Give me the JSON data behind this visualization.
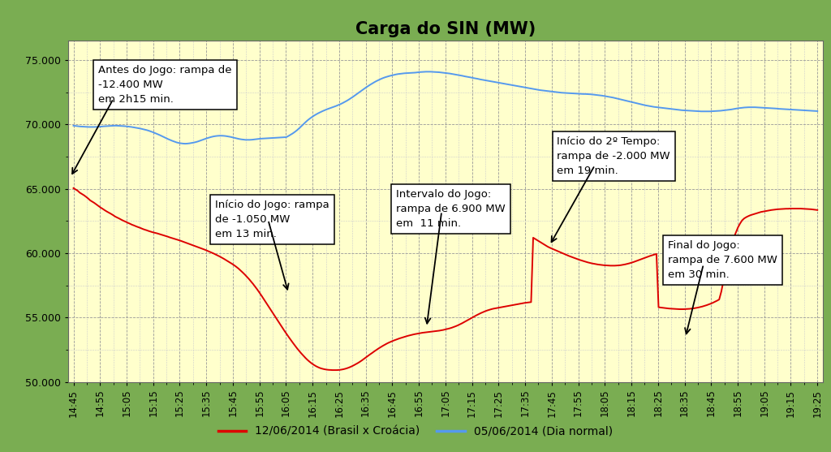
{
  "title": "Carga do SIN (MW)",
  "background_outer": "#7aad52",
  "background_plot": "#ffffcc",
  "ylim": [
    50000,
    76500
  ],
  "yticks": [
    50000,
    55000,
    60000,
    65000,
    70000,
    75000
  ],
  "x_labels": [
    "14:45",
    "14:55",
    "15:05",
    "15:15",
    "15:25",
    "15:35",
    "15:45",
    "15:55",
    "16:05",
    "16:15",
    "16:25",
    "16:35",
    "16:45",
    "16:55",
    "17:05",
    "17:15",
    "17:25",
    "17:35",
    "17:45",
    "17:55",
    "18:05",
    "18:15",
    "18:25",
    "18:35",
    "18:45",
    "18:55",
    "19:05",
    "19:15",
    "19:25"
  ],
  "red_line_color": "#dd0000",
  "blue_line_color": "#5599ee",
  "legend_red": "12/06/2014 (Brasil x Croácia)",
  "legend_blue": "05/06/2014 (Dia normal)",
  "red_data": [
    65050,
    64950,
    64850,
    64700,
    64600,
    64500,
    64380,
    64250,
    64100,
    64000,
    63900,
    63780,
    63660,
    63540,
    63440,
    63330,
    63230,
    63140,
    63050,
    62950,
    62840,
    62760,
    62680,
    62590,
    62510,
    62440,
    62360,
    62290,
    62210,
    62150,
    62080,
    62020,
    61960,
    61890,
    61830,
    61780,
    61720,
    61670,
    61620,
    61580,
    61540,
    61490,
    61440,
    61390,
    61340,
    61290,
    61230,
    61180,
    61130,
    61080,
    61030,
    60980,
    60920,
    60860,
    60800,
    60740,
    60680,
    60620,
    60560,
    60500,
    60440,
    60380,
    60320,
    60260,
    60190,
    60120,
    60050,
    59980,
    59900,
    59820,
    59740,
    59650,
    59560,
    59460,
    59360,
    59260,
    59160,
    59050,
    58930,
    58800,
    58650,
    58500,
    58340,
    58170,
    57990,
    57800,
    57600,
    57390,
    57170,
    56940,
    56700,
    56450,
    56200,
    55950,
    55700,
    55450,
    55200,
    54950,
    54700,
    54450,
    54200,
    53960,
    53720,
    53490,
    53260,
    53040,
    52820,
    52610,
    52410,
    52220,
    52040,
    51870,
    51710,
    51570,
    51440,
    51330,
    51230,
    51150,
    51080,
    51030,
    50990,
    50960,
    50940,
    50930,
    50920,
    50920,
    50920,
    50930,
    50950,
    50980,
    51020,
    51070,
    51130,
    51200,
    51280,
    51370,
    51460,
    51560,
    51670,
    51790,
    51910,
    52030,
    52150,
    52260,
    52380,
    52490,
    52600,
    52700,
    52800,
    52890,
    52980,
    53060,
    53130,
    53200,
    53260,
    53320,
    53380,
    53430,
    53480,
    53530,
    53580,
    53620,
    53660,
    53700,
    53730,
    53760,
    53790,
    53820,
    53840,
    53860,
    53880,
    53900,
    53920,
    53940,
    53960,
    53980,
    54010,
    54040,
    54080,
    54120,
    54160,
    54210,
    54270,
    54330,
    54400,
    54480,
    54560,
    54650,
    54740,
    54830,
    54920,
    55010,
    55100,
    55190,
    55270,
    55350,
    55420,
    55490,
    55550,
    55600,
    55650,
    55690,
    55720,
    55750,
    55780,
    55810,
    55840,
    55870,
    55900,
    55930,
    55960,
    55990,
    56020,
    56050,
    56080,
    56110,
    56140,
    56160,
    56180,
    56200,
    61200,
    61100,
    61000,
    60900,
    60800,
    60700,
    60600,
    60500,
    60420,
    60350,
    60280,
    60210,
    60140,
    60070,
    60000,
    59930,
    59860,
    59790,
    59730,
    59670,
    59610,
    59550,
    59490,
    59440,
    59390,
    59340,
    59290,
    59250,
    59210,
    59180,
    59150,
    59120,
    59100,
    59080,
    59060,
    59050,
    59040,
    59030,
    59030,
    59030,
    59040,
    59050,
    59070,
    59100,
    59130,
    59170,
    59210,
    59260,
    59310,
    59370,
    59430,
    59490,
    59550,
    59610,
    59670,
    59730,
    59790,
    59840,
    59890,
    59940,
    55800,
    55780,
    55760,
    55740,
    55720,
    55700,
    55690,
    55680,
    55670,
    55660,
    55650,
    55650,
    55650,
    55660,
    55670,
    55680,
    55700,
    55720,
    55750,
    55780,
    55820,
    55860,
    55910,
    55960,
    56020,
    56080,
    56150,
    56230,
    56310,
    56400,
    57000,
    57800,
    58700,
    59500,
    60200,
    60800,
    61200,
    61600,
    62000,
    62300,
    62550,
    62700,
    62800,
    62880,
    62950,
    63000,
    63050,
    63100,
    63150,
    63200,
    63230,
    63260,
    63290,
    63320,
    63350,
    63370,
    63390,
    63410,
    63420,
    63430,
    63440,
    63450,
    63450,
    63460,
    63460,
    63460,
    63460,
    63460,
    63460,
    63450,
    63440,
    63430,
    63420,
    63410,
    63390,
    63370,
    63350
  ],
  "blue_data": [
    69900,
    69880,
    69860,
    69840,
    69830,
    69820,
    69810,
    69800,
    69800,
    69800,
    69800,
    69810,
    69820,
    69830,
    69850,
    69860,
    69870,
    69880,
    69890,
    69900,
    69900,
    69890,
    69880,
    69870,
    69860,
    69840,
    69820,
    69800,
    69770,
    69740,
    69710,
    69680,
    69640,
    69600,
    69560,
    69510,
    69450,
    69390,
    69320,
    69250,
    69180,
    69100,
    69020,
    68940,
    68860,
    68790,
    68720,
    68660,
    68600,
    68560,
    68530,
    68510,
    68500,
    68510,
    68530,
    68560,
    68590,
    68630,
    68680,
    68740,
    68800,
    68860,
    68920,
    68970,
    69020,
    69060,
    69090,
    69110,
    69120,
    69120,
    69110,
    69090,
    69060,
    69030,
    68990,
    68950,
    68910,
    68870,
    68840,
    68820,
    68800,
    68800,
    68800,
    68810,
    68830,
    68850,
    68870,
    68890,
    68900,
    68910,
    68920,
    68930,
    68940,
    68950,
    68960,
    68970,
    68980,
    68990,
    69000,
    69010,
    69100,
    69200,
    69300,
    69420,
    69550,
    69700,
    69860,
    70020,
    70180,
    70330,
    70460,
    70580,
    70690,
    70790,
    70880,
    70960,
    71040,
    71110,
    71180,
    71240,
    71300,
    71360,
    71420,
    71490,
    71560,
    71640,
    71730,
    71820,
    71920,
    72030,
    72140,
    72260,
    72380,
    72500,
    72620,
    72740,
    72860,
    72970,
    73080,
    73180,
    73280,
    73370,
    73450,
    73530,
    73600,
    73660,
    73710,
    73760,
    73800,
    73840,
    73880,
    73910,
    73930,
    73950,
    73970,
    73980,
    73990,
    74000,
    74010,
    74020,
    74040,
    74060,
    74070,
    74080,
    74090,
    74090,
    74090,
    74080,
    74070,
    74060,
    74050,
    74030,
    74010,
    73990,
    73970,
    73950,
    73920,
    73890,
    73860,
    73830,
    73800,
    73770,
    73730,
    73700,
    73670,
    73640,
    73600,
    73570,
    73540,
    73500,
    73470,
    73440,
    73410,
    73380,
    73350,
    73320,
    73290,
    73260,
    73230,
    73200,
    73170,
    73140,
    73110,
    73080,
    73050,
    73020,
    72990,
    72960,
    72930,
    72900,
    72870,
    72840,
    72810,
    72780,
    72750,
    72720,
    72690,
    72660,
    72640,
    72620,
    72600,
    72580,
    72560,
    72540,
    72520,
    72500,
    72480,
    72460,
    72450,
    72440,
    72430,
    72420,
    72410,
    72400,
    72390,
    72380,
    72370,
    72360,
    72360,
    72350,
    72340,
    72330,
    72310,
    72290,
    72270,
    72250,
    72230,
    72200,
    72170,
    72140,
    72110,
    72080,
    72040,
    72000,
    71960,
    71920,
    71880,
    71840,
    71800,
    71760,
    71720,
    71680,
    71640,
    71600,
    71560,
    71520,
    71480,
    71450,
    71420,
    71390,
    71360,
    71340,
    71320,
    71300,
    71280,
    71260,
    71240,
    71220,
    71200,
    71180,
    71160,
    71140,
    71120,
    71100,
    71090,
    71080,
    71070,
    71060,
    71050,
    71040,
    71030,
    71020,
    71010,
    71010,
    71010,
    71010,
    71010,
    71020,
    71030,
    71040,
    71050,
    71060,
    71080,
    71100,
    71120,
    71140,
    71160,
    71190,
    71220,
    71250,
    71270,
    71290,
    71310,
    71320,
    71330,
    71330,
    71330,
    71330,
    71320,
    71310,
    71300,
    71290,
    71280,
    71270,
    71260,
    71250,
    71240,
    71230,
    71210,
    71200,
    71190,
    71180,
    71170,
    71160,
    71150,
    71140,
    71130,
    71120,
    71110,
    71100,
    71090,
    71080,
    71070,
    71060,
    71050,
    71040,
    71030
  ]
}
